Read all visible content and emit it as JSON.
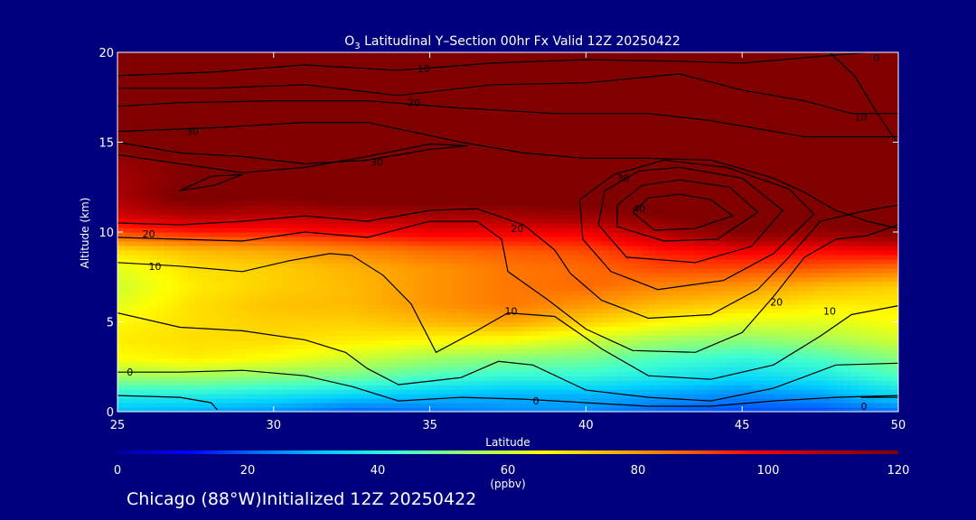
{
  "colors": {
    "background": "#00007e",
    "contour": "#000000",
    "text": "#ffffff"
  },
  "chart_data": {
    "type": "heatmap",
    "title_main": "O",
    "title_sub": "3",
    "title_rest": " Latitudinal Y–Section 00hr  Fx Valid 12Z 20250422",
    "xlabel": "Latitude",
    "ylabel": "Altitude (km)",
    "xlim": [
      25,
      50
    ],
    "ylim": [
      0,
      20
    ],
    "xticks": [
      "25",
      "30",
      "35",
      "40",
      "45",
      "50"
    ],
    "yticks": [
      "0",
      "5",
      "10",
      "15",
      "20"
    ],
    "colorbar": {
      "range": [
        0,
        120
      ],
      "ticks": [
        "0",
        "20",
        "40",
        "60",
        "80",
        "100",
        "120"
      ],
      "unit": "(ppbv)",
      "colors": [
        "#0000a0",
        "#0000ff",
        "#0070ff",
        "#00d0ff",
        "#40ffd0",
        "#a0ff60",
        "#ffff00",
        "#ffb000",
        "#ff6000",
        "#ff0000",
        "#b00000",
        "#800000"
      ]
    },
    "field_rows_note": "ozone ppbv sampled at latitudes 25..50 step 2.5 (columns) and altitudes 0..20 step 1 km (rows, bottom to top)",
    "lats": [
      25,
      27.5,
      30,
      32.5,
      35,
      37.5,
      40,
      42.5,
      45,
      47.5,
      50
    ],
    "alts": [
      0,
      1,
      2,
      3,
      4,
      5,
      6,
      7,
      8,
      9,
      10,
      11,
      12,
      13,
      14,
      15,
      16,
      17,
      18,
      19,
      20
    ],
    "field": [
      [
        30,
        28,
        25,
        20,
        22,
        25,
        25,
        20,
        18,
        18,
        22
      ],
      [
        40,
        40,
        38,
        35,
        32,
        30,
        30,
        28,
        25,
        28,
        35
      ],
      [
        55,
        55,
        52,
        50,
        45,
        42,
        42,
        38,
        35,
        38,
        45
      ],
      [
        65,
        68,
        65,
        60,
        55,
        52,
        50,
        45,
        42,
        45,
        52
      ],
      [
        68,
        70,
        70,
        68,
        66,
        65,
        60,
        55,
        52,
        55,
        60
      ],
      [
        66,
        70,
        72,
        72,
        75,
        78,
        72,
        66,
        62,
        62,
        65
      ],
      [
        62,
        70,
        74,
        75,
        80,
        84,
        80,
        75,
        72,
        68,
        68
      ],
      [
        60,
        68,
        72,
        75,
        80,
        84,
        86,
        82,
        80,
        75,
        72
      ],
      [
        62,
        70,
        72,
        76,
        80,
        84,
        86,
        90,
        90,
        88,
        85
      ],
      [
        70,
        75,
        78,
        82,
        86,
        88,
        90,
        96,
        100,
        98,
        100
      ],
      [
        90,
        95,
        95,
        98,
        100,
        100,
        100,
        110,
        120,
        115,
        120
      ],
      [
        105,
        110,
        108,
        110,
        112,
        112,
        115,
        120,
        125,
        125,
        125
      ],
      [
        110,
        125,
        120,
        125,
        125,
        125,
        125,
        125,
        125,
        125,
        125
      ],
      [
        112,
        120,
        125,
        125,
        125,
        125,
        125,
        125,
        125,
        125,
        125
      ],
      [
        115,
        120,
        125,
        125,
        125,
        125,
        125,
        125,
        125,
        125,
        125
      ],
      [
        125,
        125,
        125,
        125,
        125,
        125,
        125,
        125,
        125,
        125,
        125
      ],
      [
        125,
        125,
        125,
        125,
        125,
        125,
        125,
        125,
        125,
        125,
        125
      ],
      [
        125,
        125,
        125,
        125,
        125,
        125,
        125,
        125,
        125,
        125,
        125
      ],
      [
        125,
        125,
        125,
        125,
        125,
        125,
        125,
        125,
        125,
        125,
        125
      ],
      [
        125,
        125,
        125,
        125,
        125,
        125,
        125,
        125,
        125,
        125,
        125
      ],
      [
        125,
        125,
        125,
        125,
        125,
        125,
        125,
        125,
        125,
        125,
        125
      ]
    ],
    "contour_labels": [
      {
        "text": "10",
        "x": 34.8,
        "y": 19.1
      },
      {
        "text": "20",
        "x": 34.5,
        "y": 17.2
      },
      {
        "text": "30",
        "x": 27.4,
        "y": 15.6
      },
      {
        "text": "30",
        "x": 33.3,
        "y": 13.9
      },
      {
        "text": "20",
        "x": 26.0,
        "y": 9.9
      },
      {
        "text": "10",
        "x": 26.2,
        "y": 8.1
      },
      {
        "text": "0",
        "x": 25.4,
        "y": 2.2
      },
      {
        "text": "10",
        "x": 37.6,
        "y": 5.6
      },
      {
        "text": "0",
        "x": 38.4,
        "y": 0.6
      },
      {
        "text": "30",
        "x": 41.2,
        "y": 13.0
      },
      {
        "text": "40",
        "x": 41.7,
        "y": 11.3
      },
      {
        "text": "20",
        "x": 37.8,
        "y": 10.2
      },
      {
        "text": "20",
        "x": 46.1,
        "y": 6.1
      },
      {
        "text": "10",
        "x": 47.8,
        "y": 5.6
      },
      {
        "text": "10",
        "x": 48.8,
        "y": 16.4
      },
      {
        "text": "0",
        "x": 49.3,
        "y": 19.7
      },
      {
        "text": "0",
        "x": 48.9,
        "y": 0.3
      }
    ],
    "contours": [
      [
        [
          25,
          18.7
        ],
        [
          28,
          18.9
        ],
        [
          31,
          19.3
        ],
        [
          34,
          19.0
        ],
        [
          37,
          19.4
        ],
        [
          40,
          19.6
        ],
        [
          43,
          19.5
        ],
        [
          45,
          19.4
        ],
        [
          47,
          19.7
        ],
        [
          49,
          20
        ]
      ],
      [
        [
          25,
          18.0
        ],
        [
          28,
          18.0
        ],
        [
          31,
          18.2
        ],
        [
          34,
          17.6
        ],
        [
          37,
          18.2
        ],
        [
          40,
          18.3
        ],
        [
          43,
          18.8
        ],
        [
          45,
          17.9
        ],
        [
          47,
          17.3
        ],
        [
          48.5,
          16.6
        ],
        [
          50,
          16.6
        ]
      ],
      [
        [
          25,
          17.0
        ],
        [
          27,
          17.2
        ],
        [
          30,
          17.3
        ],
        [
          33,
          17.3
        ],
        [
          36,
          16.9
        ],
        [
          39,
          16.6
        ],
        [
          42,
          16.6
        ],
        [
          44,
          16.2
        ],
        [
          47,
          15.3
        ],
        [
          50,
          15.3
        ]
      ],
      [
        [
          25,
          15.6
        ],
        [
          28,
          15.8
        ],
        [
          31,
          16.1
        ],
        [
          33,
          16.1
        ],
        [
          36,
          15.0
        ],
        [
          38,
          14.4
        ],
        [
          40,
          14.1
        ],
        [
          42,
          14.1
        ],
        [
          44,
          14.0
        ],
        [
          46,
          13.0
        ],
        [
          47,
          12.2
        ],
        [
          48,
          11.2
        ],
        [
          49,
          10.6
        ],
        [
          50,
          10.2
        ]
      ],
      [
        [
          27,
          12.3
        ],
        [
          28,
          13.1
        ],
        [
          29,
          13.2
        ],
        [
          28.1,
          12.6
        ],
        [
          27,
          12.3
        ]
      ],
      [
        [
          25,
          15.0
        ],
        [
          27,
          14.4
        ],
        [
          29,
          14.2
        ],
        [
          31,
          13.8
        ],
        [
          33,
          14.0
        ],
        [
          35,
          14.6
        ],
        [
          36.2,
          14.8
        ],
        [
          35,
          14.9
        ],
        [
          33,
          14.2
        ],
        [
          31,
          13.6
        ],
        [
          29,
          13.3
        ],
        [
          27,
          13.8
        ],
        [
          25,
          14.3
        ]
      ],
      [
        [
          25,
          10.5
        ],
        [
          27,
          10.4
        ],
        [
          29,
          10.6
        ],
        [
          31,
          10.9
        ],
        [
          33,
          10.6
        ],
        [
          35,
          11.2
        ],
        [
          36.5,
          11.3
        ],
        [
          38,
          10.4
        ],
        [
          39,
          9.0
        ],
        [
          39.5,
          7.7
        ],
        [
          40.5,
          6.2
        ],
        [
          42,
          5.2
        ],
        [
          44,
          5.4
        ],
        [
          45.5,
          6.8
        ],
        [
          46.5,
          8.6
        ],
        [
          47.5,
          10.6
        ],
        [
          49,
          11.2
        ],
        [
          50,
          11.5
        ]
      ],
      [
        [
          25,
          9.7
        ],
        [
          27,
          9.6
        ],
        [
          29,
          9.5
        ],
        [
          31,
          10.0
        ],
        [
          33,
          9.7
        ],
        [
          35,
          10.6
        ],
        [
          36.5,
          10.6
        ],
        [
          37.3,
          9.6
        ],
        [
          37.5,
          7.8
        ],
        [
          38.8,
          6.2
        ],
        [
          40,
          4.6
        ],
        [
          41.5,
          3.4
        ],
        [
          43.5,
          3.3
        ],
        [
          45,
          4.4
        ],
        [
          46,
          6.4
        ],
        [
          47,
          8.6
        ],
        [
          48,
          9.6
        ],
        [
          49,
          9.8
        ],
        [
          50,
          10.4
        ]
      ],
      [
        [
          25,
          8.3
        ],
        [
          27,
          8.1
        ],
        [
          29,
          7.8
        ],
        [
          30.5,
          8.4
        ],
        [
          31.8,
          8.8
        ],
        [
          32.5,
          8.7
        ],
        [
          33.5,
          7.6
        ],
        [
          34.4,
          6.0
        ],
        [
          35.2,
          3.3
        ],
        [
          36.5,
          4.5
        ],
        [
          37.5,
          5.5
        ],
        [
          39,
          5.3
        ],
        [
          40.5,
          3.5
        ],
        [
          42,
          2.0
        ],
        [
          44,
          1.8
        ],
        [
          46,
          2.6
        ],
        [
          47.5,
          4.2
        ],
        [
          48.5,
          5.4
        ],
        [
          50,
          5.9
        ]
      ],
      [
        [
          25,
          5.5
        ],
        [
          27,
          4.7
        ],
        [
          29,
          4.5
        ],
        [
          31,
          4.0
        ],
        [
          32.3,
          3.3
        ],
        [
          33,
          2.4
        ],
        [
          34,
          1.5
        ],
        [
          36,
          1.9
        ],
        [
          37.2,
          2.8
        ],
        [
          38.3,
          2.6
        ],
        [
          40,
          1.2
        ],
        [
          42,
          0.8
        ],
        [
          44,
          0.6
        ],
        [
          46,
          1.3
        ],
        [
          48,
          2.6
        ],
        [
          50,
          2.7
        ]
      ],
      [
        [
          25,
          2.2
        ],
        [
          27,
          2.2
        ],
        [
          29,
          2.3
        ],
        [
          31,
          2.0
        ],
        [
          32.5,
          1.4
        ],
        [
          34,
          0.6
        ],
        [
          36,
          0.8
        ],
        [
          38,
          0.7
        ],
        [
          40,
          0.5
        ],
        [
          42,
          0.3
        ],
        [
          44,
          0.3
        ],
        [
          46,
          0.6
        ],
        [
          48,
          0.8
        ],
        [
          50,
          0.9
        ]
      ],
      [
        [
          25,
          0.9
        ],
        [
          27,
          0.8
        ],
        [
          28,
          0.5
        ],
        [
          28.2,
          0.1
        ]
      ],
      [
        [
          41.5,
          11.1
        ],
        [
          42,
          11.9
        ],
        [
          43,
          12.1
        ],
        [
          44,
          11.8
        ],
        [
          44.7,
          10.9
        ],
        [
          43.5,
          10.2
        ],
        [
          42.2,
          10.1
        ],
        [
          41.5,
          11.1
        ]
      ],
      [
        [
          41,
          11.5
        ],
        [
          41.8,
          12.6
        ],
        [
          43,
          12.9
        ],
        [
          44.6,
          12.5
        ],
        [
          45.5,
          11.1
        ],
        [
          44.2,
          9.6
        ],
        [
          42.5,
          9.5
        ],
        [
          41,
          10.3
        ],
        [
          41,
          11.5
        ]
      ],
      [
        [
          40.6,
          12.3
        ],
        [
          41.7,
          13.4
        ],
        [
          43,
          13.6
        ],
        [
          45,
          13.0
        ],
        [
          46.3,
          11.2
        ],
        [
          45.3,
          9.2
        ],
        [
          43.5,
          8.3
        ],
        [
          41.3,
          8.6
        ],
        [
          40.4,
          10.4
        ],
        [
          40.6,
          12.3
        ]
      ],
      [
        [
          39.8,
          11.8
        ],
        [
          40.9,
          13.2
        ],
        [
          42.5,
          14.0
        ],
        [
          44.5,
          13.6
        ],
        [
          46.5,
          12.4
        ],
        [
          47.3,
          11.0
        ],
        [
          46,
          8.8
        ],
        [
          44.4,
          7.3
        ],
        [
          42.3,
          6.8
        ],
        [
          40.8,
          7.8
        ],
        [
          39.9,
          9.6
        ],
        [
          39.8,
          11.8
        ]
      ],
      [
        [
          47.8,
          20
        ],
        [
          48.6,
          18.7
        ],
        [
          49.4,
          16.4
        ],
        [
          50,
          14.9
        ]
      ],
      [
        [
          48.8,
          0.8
        ],
        [
          50,
          0.8
        ]
      ]
    ]
  },
  "footer": {
    "title": "Chicago (88°W)Initialized 12Z 20250422"
  }
}
